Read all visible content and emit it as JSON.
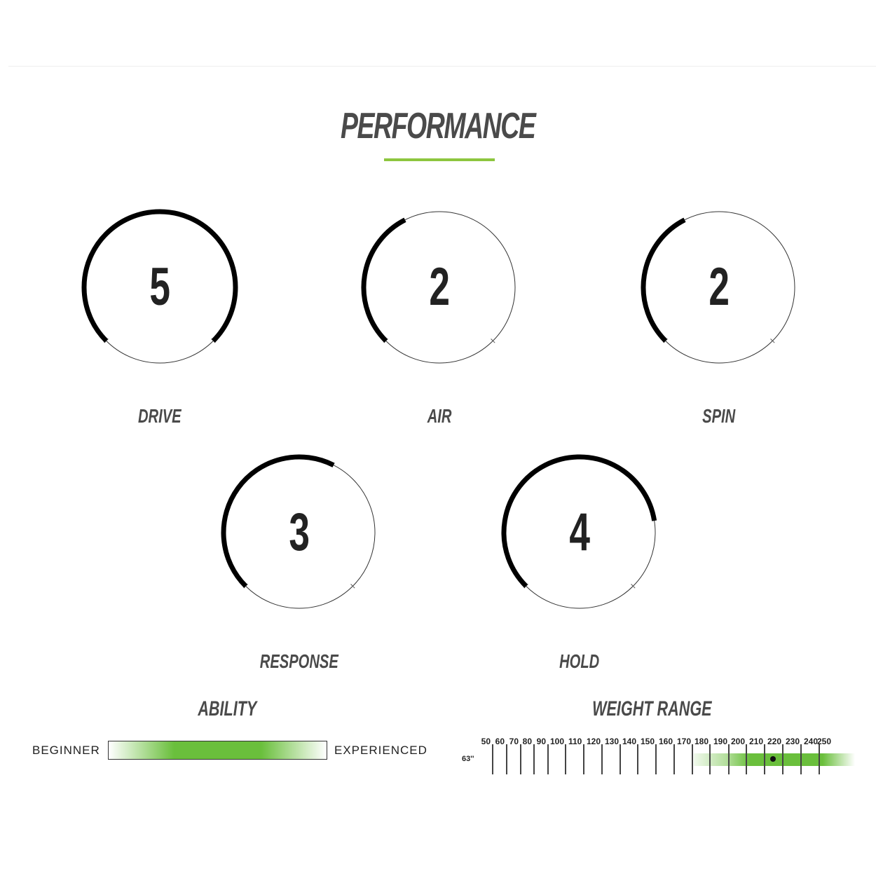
{
  "title": "PERFORMANCE",
  "accent_color": "#8dc63f",
  "gauges": [
    {
      "label": "DRIVE",
      "value": 5,
      "max": 5
    },
    {
      "label": "AIR",
      "value": 2,
      "max": 5
    },
    {
      "label": "SPIN",
      "value": 2,
      "max": 5
    },
    {
      "label": "RESPONSE",
      "value": 3,
      "max": 5
    },
    {
      "label": "HOLD",
      "value": 4,
      "max": 5
    }
  ],
  "ability": {
    "title": "ABILITY",
    "min_label": "BEGINNER",
    "max_label": "EXPERIENCED",
    "range": [
      0,
      1
    ]
  },
  "weight_range": {
    "title": "WEIGHT RANGE",
    "size_label": "63''",
    "ticks": [
      50,
      60,
      70,
      80,
      90,
      100,
      110,
      120,
      130,
      140,
      150,
      160,
      170,
      180,
      190,
      200,
      210,
      220,
      230,
      240,
      250
    ],
    "range": [
      180,
      250
    ],
    "optimal": 225,
    "bar_color": "#6abf3c"
  }
}
